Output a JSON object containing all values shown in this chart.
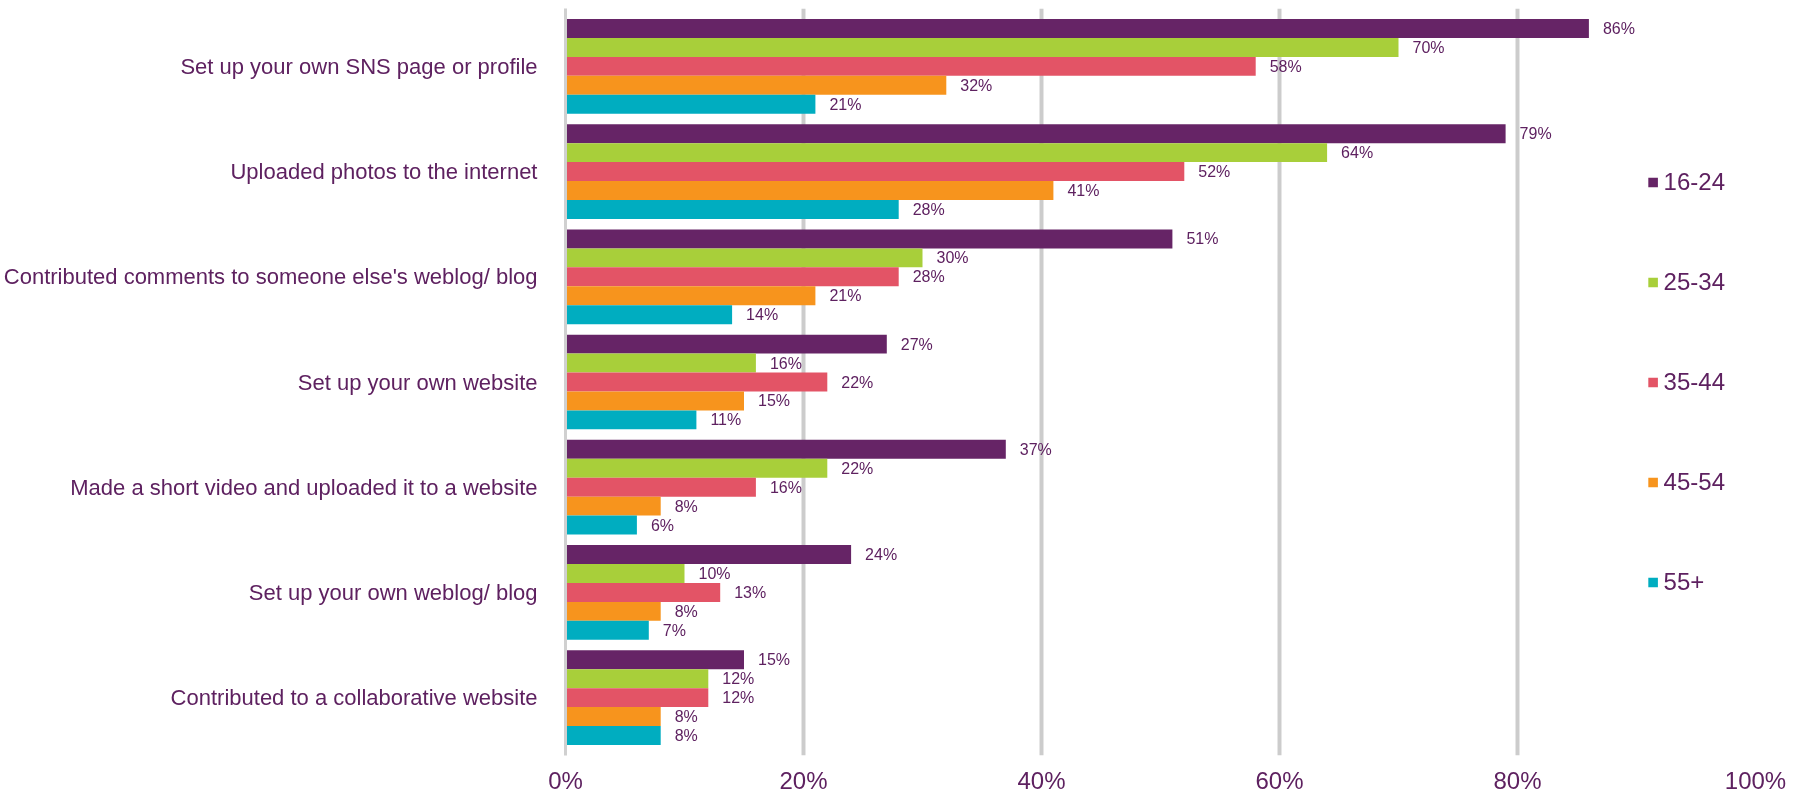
{
  "chart_data": {
    "type": "bar",
    "orientation": "horizontal",
    "categories": [
      "Set up your own SNS page or profile",
      "Uploaded photos to the internet",
      "Contributed comments to someone else's weblog/ blog",
      "Set up your own website",
      "Made a short video and uploaded it to a website",
      "Set up your own weblog/ blog",
      "Contributed to a collaborative website"
    ],
    "series": [
      {
        "name": "16-24",
        "color": "#662466",
        "values": [
          86,
          79,
          51,
          27,
          37,
          24,
          15
        ],
        "value_labels": [
          "86%",
          "79%",
          "51%",
          "27%",
          "37%",
          "24%",
          "15%"
        ]
      },
      {
        "name": "25-34",
        "color": "#a8cf3a",
        "values": [
          70,
          64,
          30,
          16,
          22,
          10,
          12
        ],
        "value_labels": [
          "70%",
          "64%",
          "30%",
          "16%",
          "22%",
          "10%",
          "12%"
        ]
      },
      {
        "name": "35-44",
        "color": "#e35466",
        "values": [
          58,
          52,
          28,
          22,
          16,
          13,
          12
        ],
        "value_labels": [
          "58%",
          "52%",
          "28%",
          "22%",
          "16%",
          "13%",
          "12%"
        ]
      },
      {
        "name": "45-54",
        "color": "#f7941d",
        "values": [
          32,
          41,
          21,
          15,
          8,
          8,
          8
        ],
        "value_labels": [
          "32%",
          "41%",
          "21%",
          "15%",
          "8%",
          "8%",
          "8%"
        ]
      },
      {
        "name": "55+",
        "color": "#00adc0",
        "values": [
          21,
          28,
          14,
          11,
          6,
          7,
          8
        ],
        "value_labels": [
          "21%",
          "28%",
          "14%",
          "11%",
          "6%",
          "7%",
          "8%"
        ]
      }
    ],
    "xlim": [
      0,
      100
    ],
    "xticks": [
      {
        "value": 0,
        "label": "0%"
      },
      {
        "value": 20,
        "label": "20%"
      },
      {
        "value": 40,
        "label": "40%"
      },
      {
        "value": 60,
        "label": "60%"
      },
      {
        "value": 80,
        "label": "80%"
      },
      {
        "value": 100,
        "label": "100%"
      }
    ],
    "grid": "x",
    "legend": "right"
  }
}
